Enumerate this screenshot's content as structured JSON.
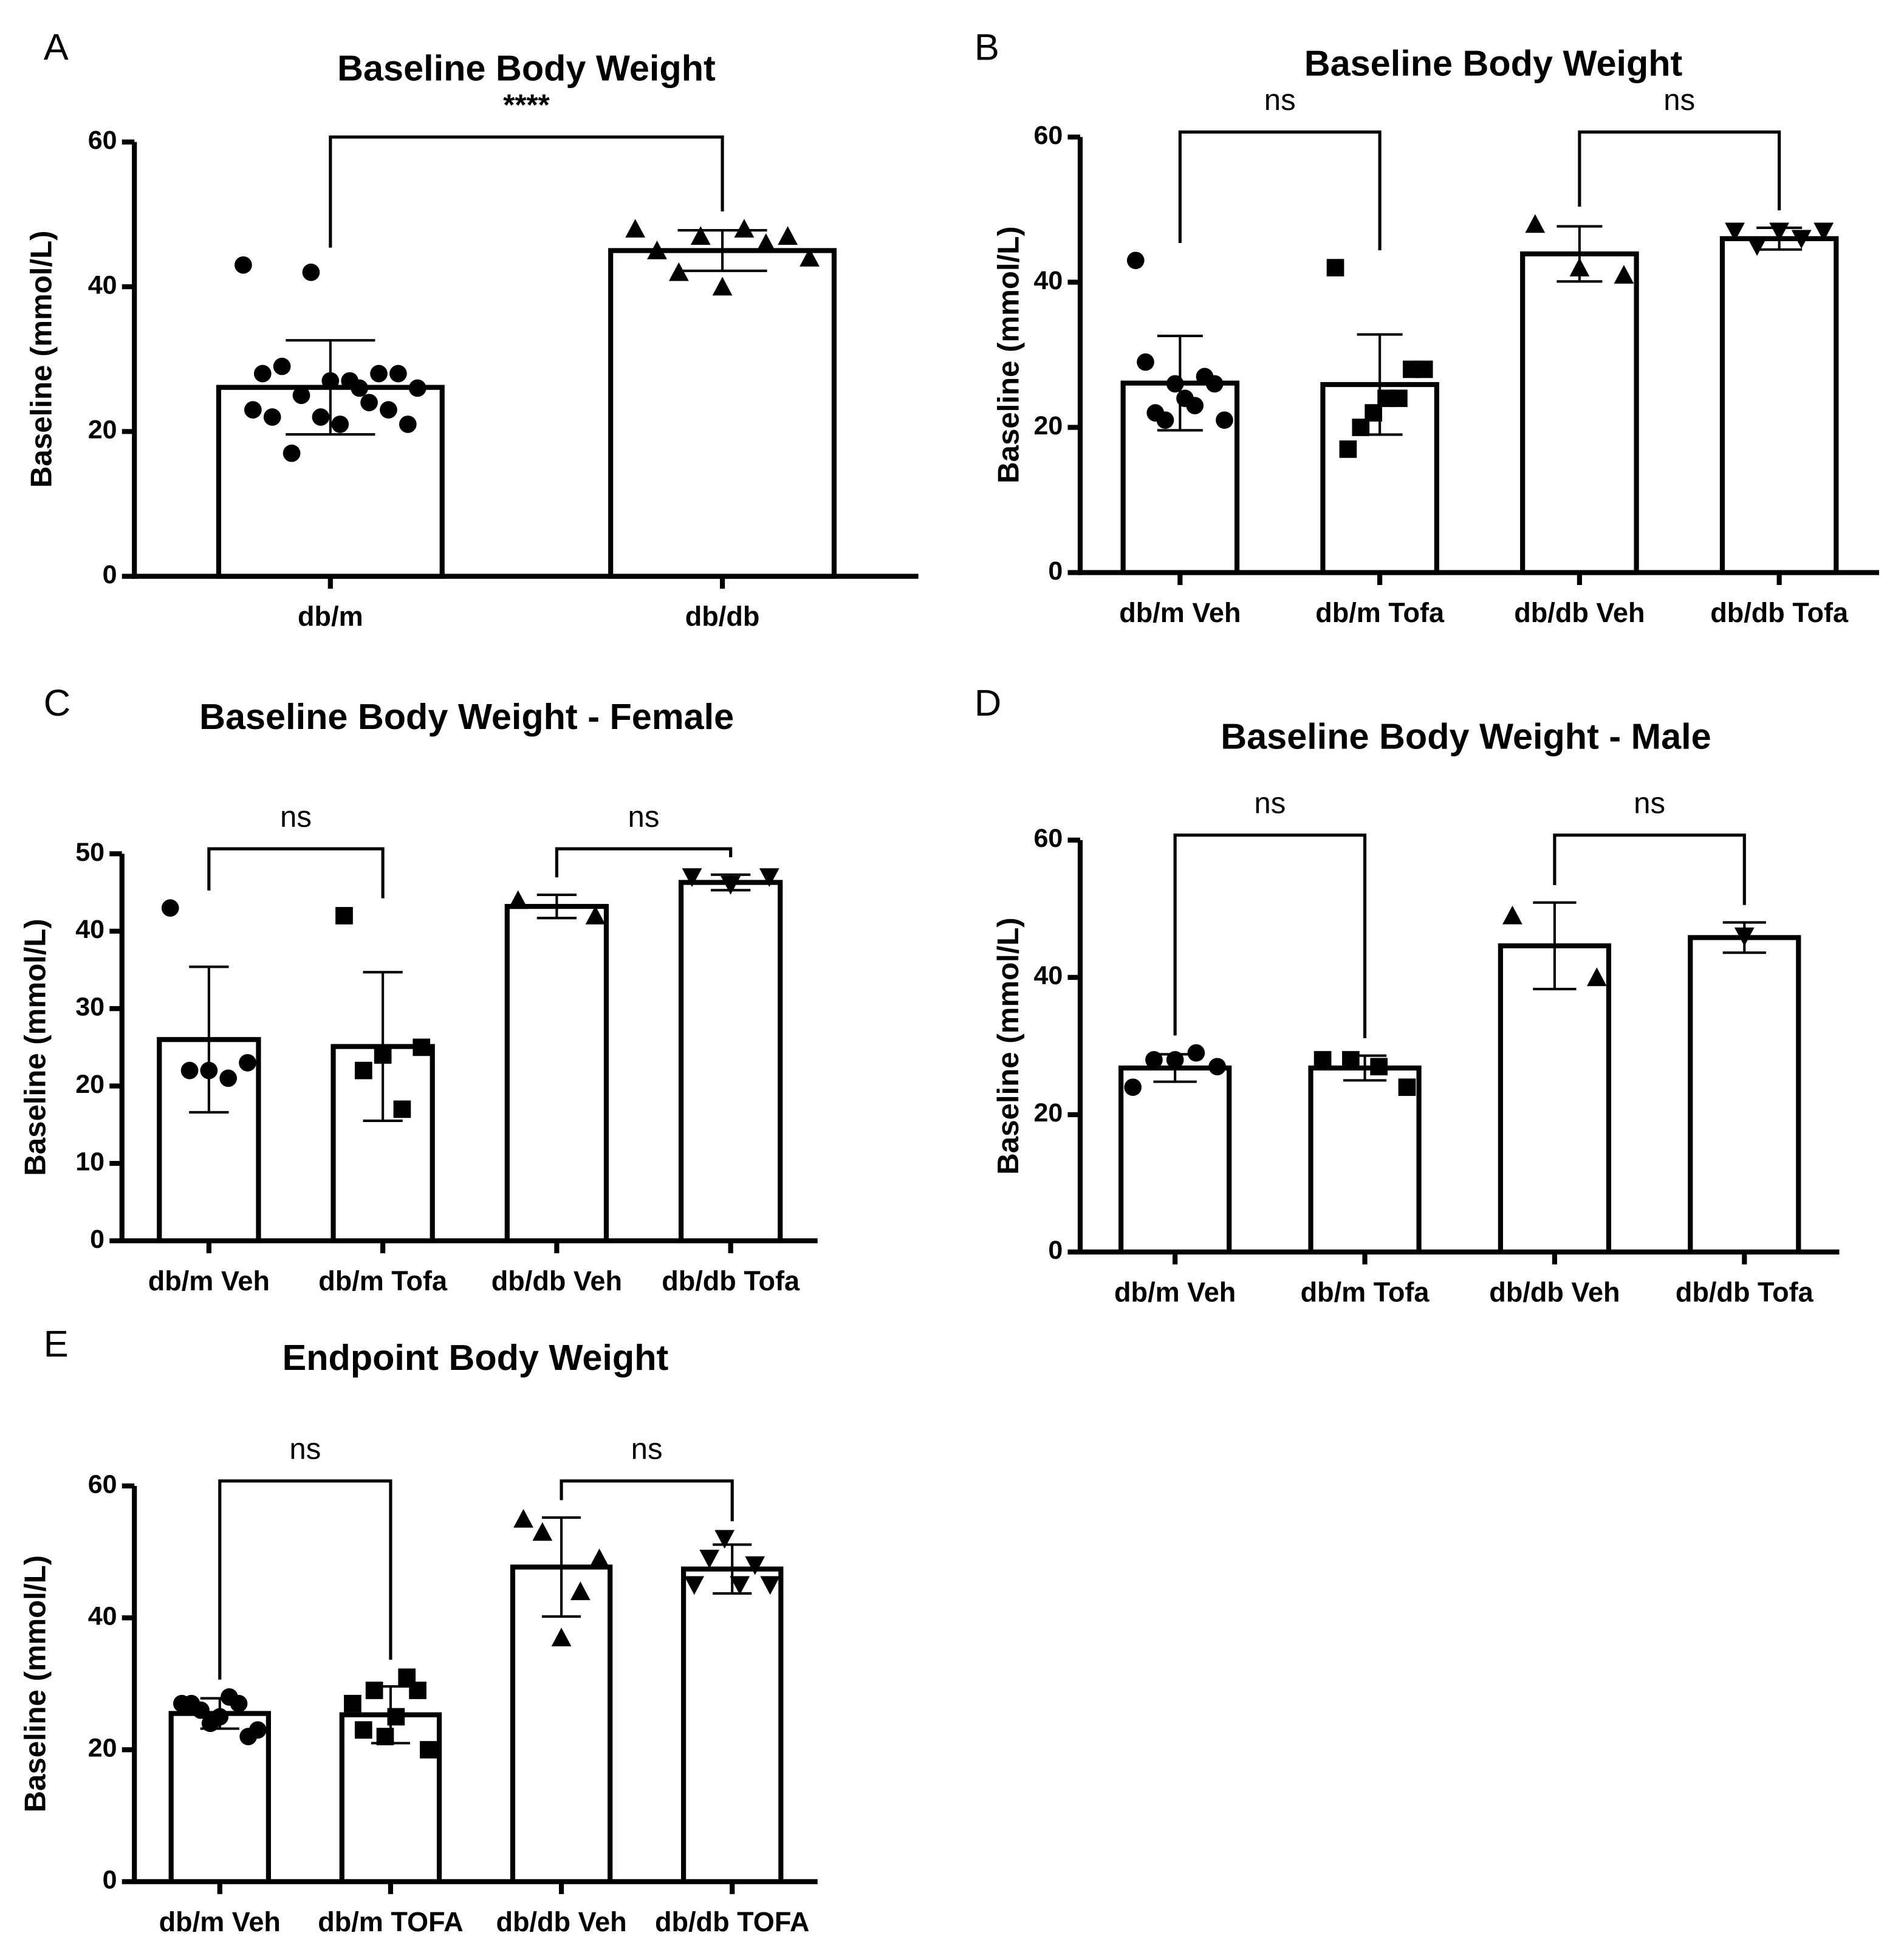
{
  "chart_data": [
    {
      "type": "bar",
      "panel": "A",
      "title": "Baseline Body Weight",
      "y_label": "Baseline (mmol/L)",
      "categories": [
        "db/m",
        "db/db"
      ],
      "values": [
        26.1,
        45.0
      ],
      "errors": [
        6.5,
        2.8
      ],
      "markers": [
        "circle",
        "triangle"
      ],
      "points": [
        [
          43,
          42,
          28,
          28,
          27,
          28,
          29,
          27,
          26,
          25,
          24,
          23,
          22,
          23,
          22,
          21,
          21,
          17,
          26
        ],
        [
          48,
          47,
          48,
          47,
          45,
          44,
          46,
          40,
          42
        ]
      ],
      "comparisons": [
        {
          "groups": [
            "db/m",
            "db/db"
          ],
          "label": "****"
        }
      ],
      "ylim": [
        0,
        60
      ],
      "yticks": [
        0,
        20,
        40,
        60
      ]
    },
    {
      "type": "bar",
      "panel": "B",
      "title": "Baseline Body Weight",
      "y_label": "Baseline (mmol/L)",
      "categories": [
        "db/m Veh",
        "db/m Tofa",
        "db/db Veh",
        "db/db Tofa"
      ],
      "values": [
        26.1,
        25.9,
        43.9,
        46.0
      ],
      "errors": [
        6.5,
        6.9,
        3.8,
        1.5
      ],
      "markers": [
        "circle",
        "square",
        "triangle",
        "down-triangle"
      ],
      "points": [
        [
          43,
          27,
          26,
          29,
          26,
          24,
          22,
          21,
          23,
          21
        ],
        [
          42,
          28,
          28,
          24,
          24,
          22,
          20,
          17
        ],
        [
          48,
          42,
          41
        ],
        [
          47,
          47,
          47,
          45,
          46
        ]
      ],
      "comparisons": [
        {
          "groups": [
            "db/m Veh",
            "db/m Tofa"
          ],
          "label": "ns"
        },
        {
          "groups": [
            "db/db Veh",
            "db/db Tofa"
          ],
          "label": "ns"
        }
      ],
      "ylim": [
        0,
        60
      ],
      "yticks": [
        0,
        20,
        40,
        60
      ]
    },
    {
      "type": "bar",
      "panel": "C",
      "title": "Baseline Body Weight - Female",
      "y_label": "Baseline (mmol/L)",
      "categories": [
        "db/m Veh",
        "db/m Tofa",
        "db/db Veh",
        "db/db Tofa"
      ],
      "values": [
        26.0,
        25.1,
        43.2,
        46.3
      ],
      "errors": [
        9.4,
        9.6,
        1.5,
        1.0
      ],
      "markers": [
        "circle",
        "square",
        "triangle",
        "down-triangle"
      ],
      "points": [
        [
          43,
          22,
          23,
          22,
          21
        ],
        [
          42,
          24,
          25,
          22,
          17
        ],
        [
          44,
          42
        ],
        [
          47,
          46,
          47
        ]
      ],
      "comparisons": [
        {
          "groups": [
            "db/m Veh",
            "db/m Tofa"
          ],
          "label": "ns"
        },
        {
          "groups": [
            "db/db Veh",
            "db/db Tofa"
          ],
          "label": "ns"
        }
      ],
      "ylim": [
        0,
        50
      ],
      "yticks": [
        0,
        10,
        20,
        30,
        40,
        50
      ]
    },
    {
      "type": "bar",
      "panel": "D",
      "title": "Baseline Body Weight - Male",
      "y_label": "Baseline (mmol/L)",
      "categories": [
        "db/m Veh",
        "db/m Tofa",
        "db/db Veh",
        "db/db Tofa"
      ],
      "values": [
        26.8,
        26.8,
        44.6,
        45.8
      ],
      "errors": [
        2.0,
        1.8,
        6.3,
        2.2
      ],
      "markers": [
        "circle",
        "square",
        "triangle",
        "down-triangle"
      ],
      "points": [
        [
          24,
          28,
          27,
          28,
          29
        ],
        [
          28,
          24,
          27,
          28
        ],
        [
          49,
          40
        ],
        [
          46
        ]
      ],
      "comparisons": [
        {
          "groups": [
            "db/m Veh",
            "db/m Tofa"
          ],
          "label": "ns"
        },
        {
          "groups": [
            "db/db Veh",
            "db/db Tofa"
          ],
          "label": "ns"
        }
      ],
      "ylim": [
        0,
        60
      ],
      "yticks": [
        0,
        20,
        40,
        60
      ]
    },
    {
      "type": "bar",
      "panel": "E",
      "title": "Endpoint Body Weight",
      "y_label": "Baseline (mmol/L)",
      "categories": [
        "db/m Veh",
        "db/m TOFA",
        "db/db Veh",
        "db/db TOFA"
      ],
      "values": [
        25.5,
        25.3,
        47.7,
        47.4
      ],
      "errors": [
        2.3,
        4.3,
        7.5,
        3.7
      ],
      "markers": [
        "circle",
        "square",
        "triangle",
        "down-triangle"
      ],
      "points": [
        [
          27,
          22,
          28,
          24,
          27,
          23,
          27,
          25,
          26
        ],
        [
          27,
          20,
          29,
          31,
          25,
          22,
          29,
          23
        ],
        [
          55,
          37,
          49,
          53,
          44
        ],
        [
          45,
          49,
          52,
          45,
          48,
          45
        ]
      ],
      "comparisons": [
        {
          "groups": [
            "db/m Veh",
            "db/m TOFA"
          ],
          "label": "ns"
        },
        {
          "groups": [
            "db/db Veh",
            "db/db TOFA"
          ],
          "label": "ns"
        }
      ],
      "ylim": [
        0,
        60
      ],
      "yticks": [
        0,
        20,
        40,
        60
      ]
    }
  ]
}
